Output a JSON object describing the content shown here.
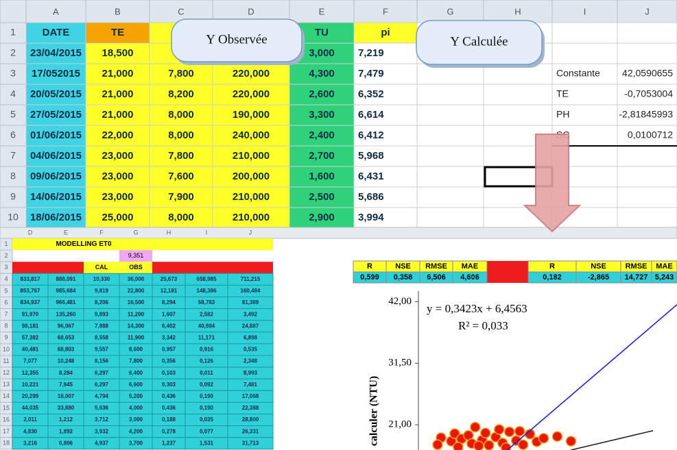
{
  "top_sheet": {
    "columns": [
      "A",
      "B",
      "C",
      "D",
      "E",
      "F",
      "G",
      "H",
      "I",
      "J"
    ],
    "row_numbers": [
      1,
      2,
      3,
      4,
      5,
      6,
      7,
      8,
      9,
      10
    ],
    "rows": [
      [
        "DATE",
        "TE",
        null,
        null,
        "TU",
        "pi",
        null,
        null,
        null,
        null
      ],
      [
        "23/04/2015",
        "18,500",
        null,
        null,
        "3,000",
        "7,219",
        null,
        null,
        null,
        null
      ],
      [
        "17/052015",
        "21,000",
        "7,800",
        "220,000",
        "4,300",
        "7,479",
        null,
        null,
        "Constante",
        "42,0590655"
      ],
      [
        "20/05/2015",
        "21,000",
        "8,200",
        "220,000",
        "2,600",
        "6,352",
        null,
        null,
        "TE",
        "-0,7053004"
      ],
      [
        "27/05/2015",
        "21,000",
        "8,000",
        "190,000",
        "3,300",
        "6,614",
        null,
        null,
        "PH",
        "-2,81845993"
      ],
      [
        "01/06/2015",
        "22,000",
        "8,000",
        "240,000",
        "2,400",
        "6,412",
        null,
        null,
        "SC",
        "0,0100712"
      ],
      [
        "04/06/2015",
        "23,000",
        "7,800",
        "210,000",
        "2,700",
        "5,968",
        null,
        null,
        null,
        null
      ],
      [
        "09/06/2015",
        "23,000",
        "7,600",
        "200,000",
        "1,600",
        "6,431",
        null,
        null,
        null,
        null
      ],
      [
        "14/06/2015",
        "23,000",
        "7,900",
        "210,000",
        "2,500",
        "5,686",
        null,
        null,
        null,
        null
      ],
      [
        "18/06/2015",
        "25,000",
        "8,000",
        "210,000",
        "2,900",
        "3,994",
        null,
        null,
        null,
        null
      ]
    ]
  },
  "callouts": [
    "Y Observée",
    "Y Calculée"
  ],
  "model_sheet": {
    "columns": [
      "D",
      "E",
      "F",
      "G",
      "H",
      "I",
      "J"
    ],
    "row_numbers": [
      1,
      2,
      3,
      4,
      5,
      6,
      7,
      8,
      9,
      10,
      11,
      12,
      13,
      14,
      15,
      16,
      17,
      18
    ],
    "title": "MODELLING ET0",
    "constant": "9,351",
    "headers": [
      "CAL",
      "OBS"
    ],
    "rows": [
      [
        "833,817",
        "888,091",
        "10,330",
        "36,000",
        "25,673",
        "658,985",
        "711,215"
      ],
      [
        "853,767",
        "985,684",
        "9,819",
        "22,800",
        "12,181",
        "148,386",
        "160,484"
      ],
      [
        "834,937",
        "966,481",
        "8,206",
        "16,500",
        "8,294",
        "68,783",
        "81,389"
      ],
      [
        "91,970",
        "135,260",
        "9,893",
        "11,200",
        "1,607",
        "2,582",
        "3,492"
      ],
      [
        "98,181",
        "96,067",
        "7,888",
        "14,300",
        "6,402",
        "40,984",
        "24,887"
      ],
      [
        "57,382",
        "68,653",
        "8,558",
        "11,900",
        "3,342",
        "11,171",
        "6,898"
      ],
      [
        "40,481",
        "68,803",
        "9,557",
        "8,600",
        "0,957",
        "0,916",
        "0,535"
      ],
      [
        "7,077",
        "10,248",
        "8,156",
        "7,800",
        "0,356",
        "0,126",
        "2,348"
      ],
      [
        "12,355",
        "8,284",
        "6,297",
        "6,400",
        "0,103",
        "0,011",
        "8,993"
      ],
      [
        "10,221",
        "7,845",
        "6,297",
        "6,600",
        "0,303",
        "0,092",
        "7,481"
      ],
      [
        "20,299",
        "18,007",
        "4,794",
        "5,200",
        "0,436",
        "0,190",
        "17,068"
      ],
      [
        "44,035",
        "33,880",
        "5,636",
        "4,000",
        "0,436",
        "0,190",
        "22,388"
      ],
      [
        "2,011",
        "1,212",
        "3,712",
        "3,000",
        "0,188",
        "0,035",
        "28,800"
      ],
      [
        "4,830",
        "1,892",
        "3,932",
        "4,200",
        "0,278",
        "0,077",
        "26,331"
      ],
      [
        "3,216",
        "0,806",
        "4,937",
        "3,700",
        "1,237",
        "1,531",
        "31,713"
      ]
    ]
  },
  "metrics": [
    {
      "headers": [
        "R",
        "NSE",
        "RMSE",
        "MAE"
      ],
      "values": [
        "0,599",
        "0,358",
        "6,506",
        "4,606"
      ]
    },
    {
      "headers": [
        "R",
        "NSE",
        "RMSE",
        "MAE"
      ],
      "values": [
        "0,182",
        "-2,865",
        "14,727",
        "5,243"
      ]
    }
  ],
  "chart_data": {
    "type": "scatter",
    "ylabel": "calculer (NTU)",
    "equation": "y = 0,3423x + 6,4563",
    "r_squared": "R² = 0,033",
    "xlim": [
      3.7,
      41.5
    ],
    "ylim": [
      16.7,
      45.2
    ],
    "yticks": [
      {
        "value": 42,
        "label": "42,00"
      },
      {
        "value": 31.5,
        "label": "31,50"
      },
      {
        "value": 21,
        "label": "21,00"
      }
    ],
    "color": "#e8170a",
    "x": [
      7,
      8.5,
      9,
      10,
      11,
      11.5,
      12,
      13,
      13.5,
      14,
      15,
      15.5,
      16,
      17,
      18,
      19,
      20,
      21,
      22,
      24,
      26,
      6.5,
      9.5,
      12.5,
      16.5,
      18.5
    ],
    "y": [
      18.8,
      18.2,
      19.5,
      18.6,
      19.2,
      17.8,
      20.6,
      18.4,
      19.6,
      17.5,
      18.9,
      20.2,
      17.9,
      19.8,
      18.3,
      17.6,
      19.4,
      18.1,
      18.7,
      19.0,
      18.2,
      17.6,
      17.2,
      17.4,
      17.1,
      19.9
    ],
    "lines": [
      {
        "name": "1:1",
        "color": "#2020e0",
        "x": [
          16.7,
          41.5
        ],
        "y": [
          16.7,
          41.5
        ]
      },
      {
        "name": "trend",
        "color": "#222222",
        "x": [
          26,
          38
        ],
        "y": [
          16.7,
          20
        ]
      }
    ]
  }
}
